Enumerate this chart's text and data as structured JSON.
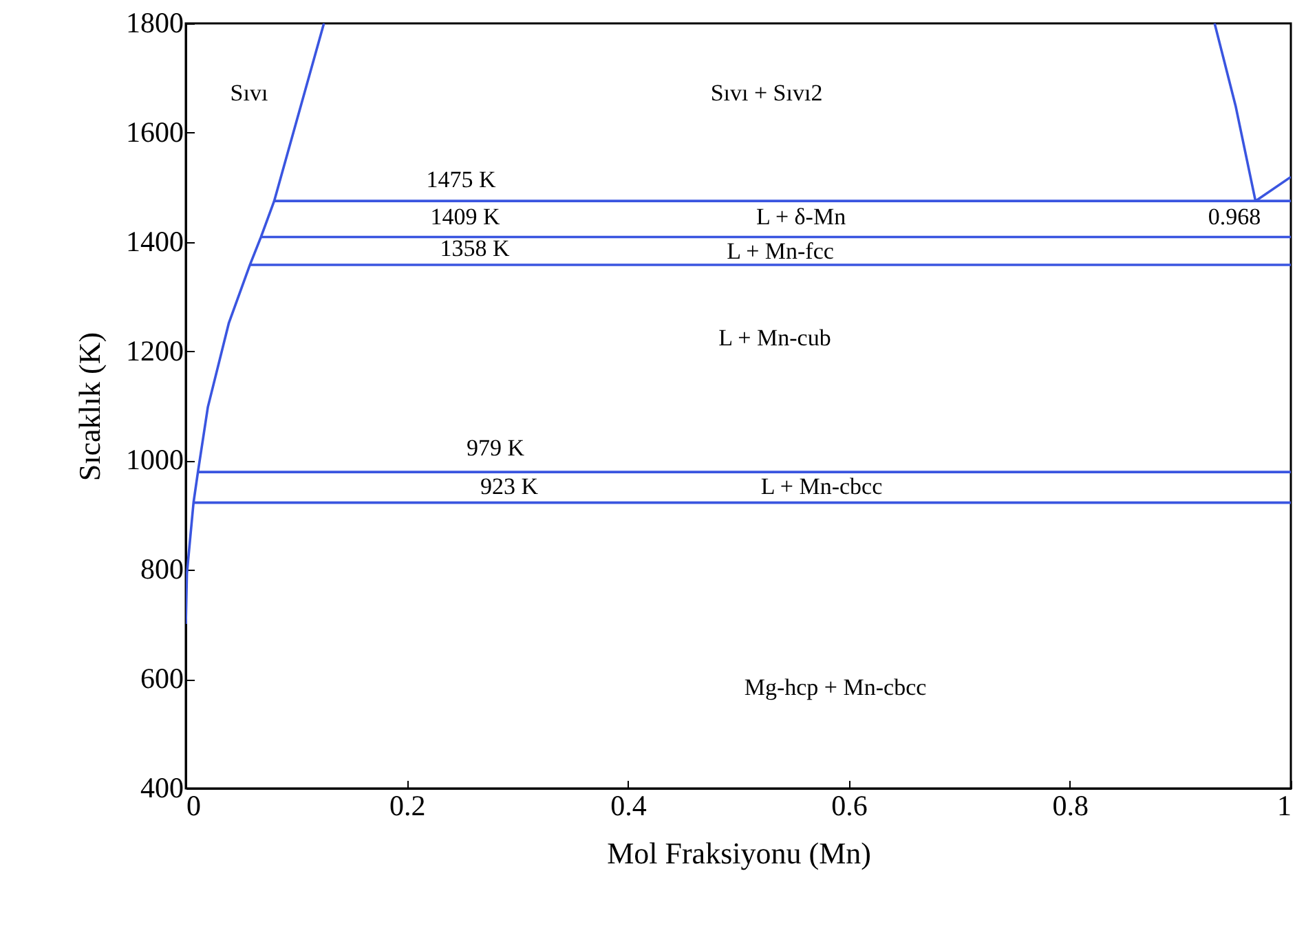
{
  "chart_data": {
    "type": "line",
    "xlabel": "Mol Fraksiyonu (Mn)",
    "ylabel": "Sıcaklık (K)",
    "xlim": [
      0,
      1
    ],
    "ylim": [
      400,
      1800
    ],
    "xticks": [
      0,
      0.2,
      0.4,
      0.6,
      0.8,
      1
    ],
    "yticks": [
      400,
      600,
      800,
      1000,
      1200,
      1400,
      1600,
      1800
    ],
    "grid": false,
    "series": [
      {
        "color": "#3a55e0",
        "x": [
          0,
          0.001,
          0.007,
          0.011,
          0.02,
          0.039,
          0.058,
          0.068,
          0.08,
          0.125
        ],
        "values": [
          701,
          793,
          923,
          979,
          1098,
          1252,
          1358,
          1409,
          1475,
          1800
        ]
      },
      {
        "color": "#3a55e0",
        "x": [
          0.931,
          0.95,
          0.968,
          1
        ],
        "values": [
          1800,
          1649,
          1475,
          1519
        ]
      },
      {
        "color": "#3a55e0",
        "x": [
          0.08,
          1
        ],
        "values": [
          1475,
          1475
        ]
      },
      {
        "color": "#3a55e0",
        "x": [
          0.068,
          1
        ],
        "values": [
          1409,
          1409
        ]
      },
      {
        "color": "#3a55e0",
        "x": [
          0.058,
          1
        ],
        "values": [
          1358,
          1358
        ]
      },
      {
        "color": "#3a55e0",
        "x": [
          0.011,
          1
        ],
        "values": [
          979,
          979
        ]
      },
      {
        "color": "#3a55e0",
        "x": [
          0.007,
          1
        ],
        "values": [
          923,
          923
        ]
      }
    ],
    "annotations": [
      "Sıvı",
      "Sıvı + Sıvı2",
      "1475 K",
      "1409 K",
      "L + δ-Mn",
      "0.968",
      "1358 K",
      "L + Mn-fcc",
      "L + Mn-cub",
      "979 K",
      "923 K",
      "L + Mn-cbcc",
      "Mg-hcp + Mn-cbcc"
    ]
  }
}
